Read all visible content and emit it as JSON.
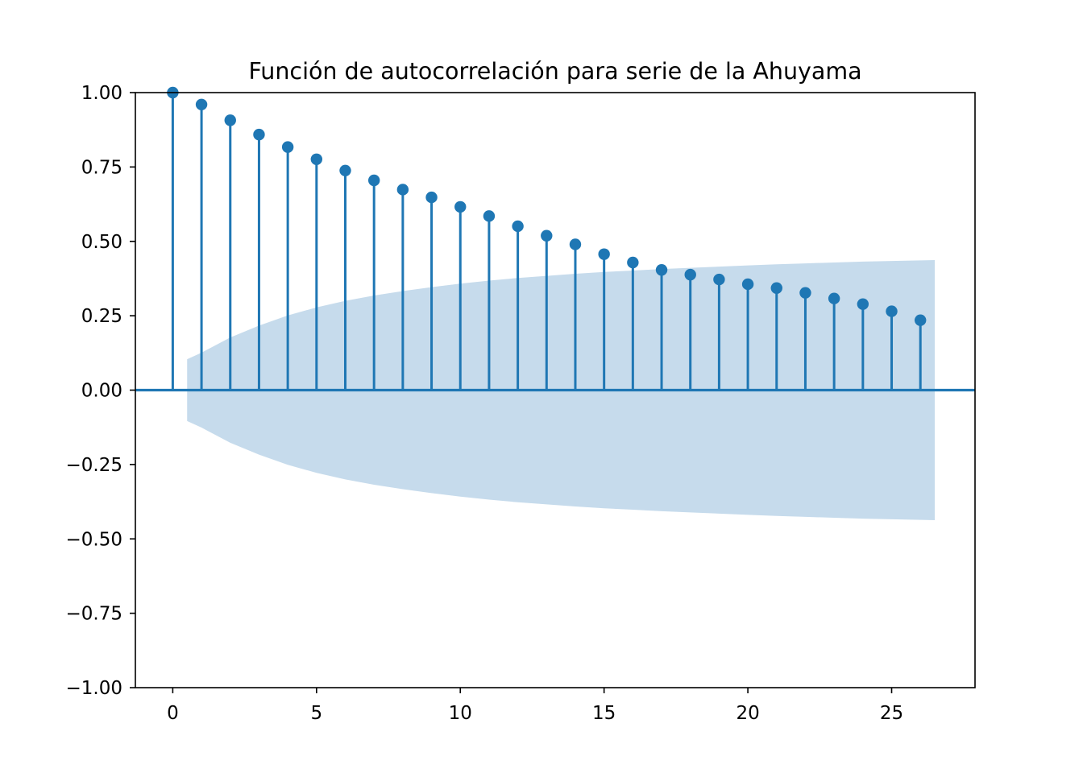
{
  "chart_data": {
    "type": "stem",
    "title": "Función de autocorrelación para serie de la Ahuyama",
    "xlabel": "",
    "ylabel": "",
    "xlim": [
      -1.3,
      27.9
    ],
    "ylim": [
      -1.0,
      1.0
    ],
    "x_ticks": [
      0,
      5,
      10,
      15,
      20,
      25
    ],
    "x_tick_labels": [
      "0",
      "5",
      "10",
      "15",
      "20",
      "25"
    ],
    "y_ticks": [
      1.0,
      0.75,
      0.5,
      0.25,
      0.0,
      -0.25,
      -0.5,
      -0.75,
      -1.0
    ],
    "y_tick_labels": [
      "1.00",
      "0.75",
      "0.50",
      "0.25",
      "0.00",
      "−0.25",
      "−0.50",
      "−0.75",
      "−1.00"
    ],
    "grid": false,
    "series": [
      {
        "lags": [
          0,
          1,
          2,
          3,
          4,
          5,
          6,
          7,
          8,
          9,
          10,
          11,
          12,
          13,
          14,
          15,
          16,
          17,
          18,
          19,
          20,
          21,
          22,
          23,
          24,
          25,
          26
        ],
        "values": [
          1.0,
          0.96,
          0.907,
          0.859,
          0.817,
          0.776,
          0.738,
          0.705,
          0.674,
          0.648,
          0.616,
          0.585,
          0.551,
          0.519,
          0.49,
          0.457,
          0.429,
          0.404,
          0.388,
          0.372,
          0.356,
          0.343,
          0.327,
          0.308,
          0.289,
          0.265,
          0.235
        ]
      }
    ],
    "confidence_band": {
      "lags": [
        0.5,
        1,
        2,
        3,
        4,
        5,
        6,
        7,
        8,
        9,
        10,
        11,
        12,
        13,
        14,
        15,
        16,
        17,
        18,
        19,
        20,
        21,
        22,
        23,
        24,
        25,
        26,
        26.5
      ],
      "upper": [
        0.104,
        0.126,
        0.177,
        0.217,
        0.251,
        0.278,
        0.3,
        0.318,
        0.333,
        0.346,
        0.358,
        0.368,
        0.377,
        0.384,
        0.391,
        0.397,
        0.402,
        0.407,
        0.411,
        0.415,
        0.419,
        0.423,
        0.426,
        0.429,
        0.432,
        0.434,
        0.436,
        0.437
      ]
    },
    "colors": {
      "stem": "#1f77b4",
      "band": "#c6dbec",
      "baseline": "#1f77b4"
    }
  }
}
